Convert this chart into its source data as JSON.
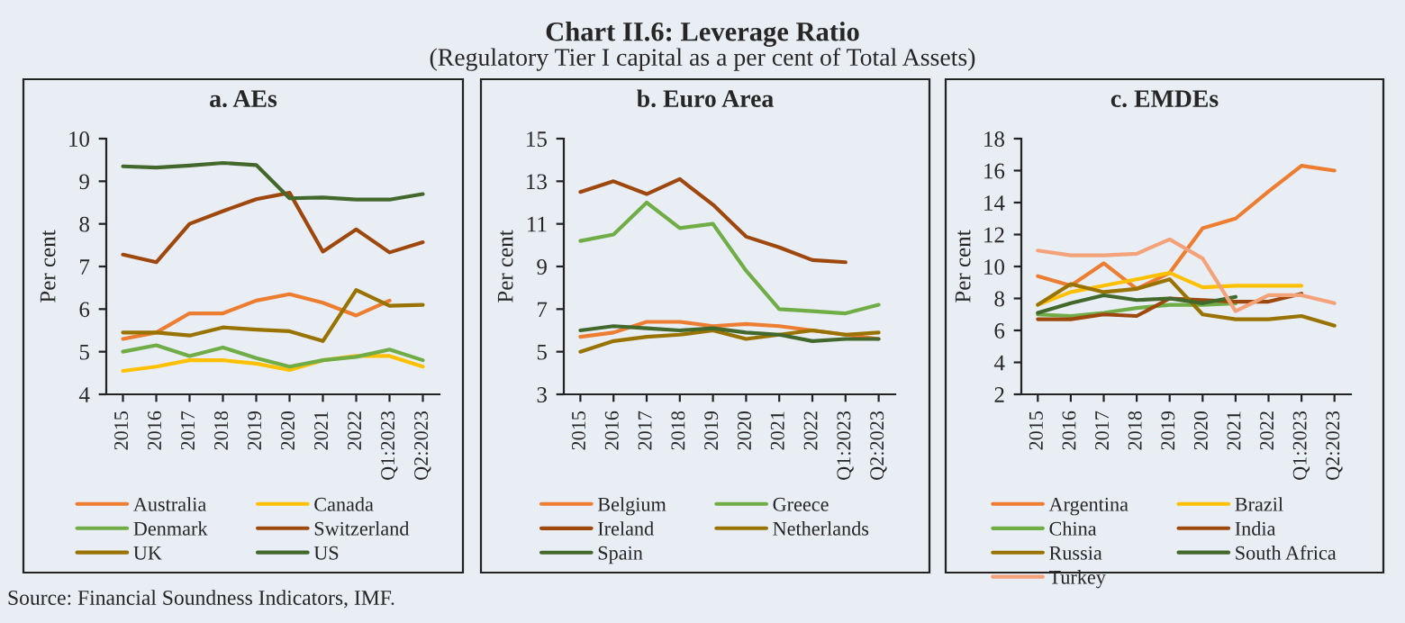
{
  "chart_data": [
    {
      "type": "line",
      "title": "a. AEs",
      "ylabel": "Per cent",
      "annotations": [
        "Chart II.6: Leverage Ratio",
        "(Regulatory Tier I capital as a per cent of Total Assets)",
        "Source: Financial Soundness Indicators, IMF."
      ],
      "categories": [
        "2015",
        "2016",
        "2017",
        "2018",
        "2019",
        "2020",
        "2021",
        "2022",
        "Q1:2023",
        "Q2:2023"
      ],
      "ylim": [
        4,
        10
      ],
      "yticks": [
        4,
        5,
        6,
        7,
        8,
        9,
        10
      ],
      "grid": false,
      "legend": "bottom",
      "marker": "none",
      "line_style": "solid",
      "series": [
        {
          "name": "Australia",
          "color": "#ed7d31",
          "values": [
            5.3,
            5.45,
            5.9,
            5.9,
            6.2,
            6.35,
            6.15,
            5.85,
            6.2,
            null
          ]
        },
        {
          "name": "Canada",
          "color": "#ffc000",
          "values": [
            4.55,
            4.65,
            4.8,
            4.8,
            4.72,
            4.57,
            4.8,
            4.9,
            4.9,
            4.65
          ]
        },
        {
          "name": "Denmark",
          "color": "#70ad47",
          "values": [
            5.0,
            5.15,
            4.9,
            5.1,
            4.85,
            4.65,
            4.8,
            4.88,
            5.05,
            4.8
          ]
        },
        {
          "name": "Switzerland",
          "color": "#9e480e",
          "values": [
            7.28,
            7.1,
            8.0,
            8.3,
            8.58,
            8.73,
            7.35,
            7.87,
            7.33,
            7.57
          ]
        },
        {
          "name": "UK",
          "color": "#997300",
          "values": [
            5.45,
            5.45,
            5.38,
            5.57,
            5.52,
            5.48,
            5.25,
            6.45,
            6.08,
            6.1
          ]
        },
        {
          "name": "US",
          "color": "#43682b",
          "values": [
            9.35,
            9.32,
            9.37,
            9.43,
            9.38,
            8.6,
            8.62,
            8.57,
            8.57,
            8.7
          ]
        }
      ]
    },
    {
      "type": "line",
      "title": "b. Euro Area",
      "ylabel": "Per cent",
      "categories": [
        "2015",
        "2016",
        "2017",
        "2018",
        "2019",
        "2020",
        "2021",
        "2022",
        "Q1:2023",
        "Q2:2023"
      ],
      "ylim": [
        3,
        15
      ],
      "yticks": [
        3,
        5,
        7,
        9,
        11,
        13,
        15
      ],
      "grid": false,
      "legend": "bottom",
      "marker": "none",
      "line_style": "solid",
      "series": [
        {
          "name": "Belgium",
          "color": "#ed7d31",
          "values": [
            5.7,
            5.9,
            6.4,
            6.4,
            6.2,
            6.3,
            6.2,
            6.0,
            5.8,
            5.6
          ]
        },
        {
          "name": "Greece",
          "color": "#70ad47",
          "values": [
            10.2,
            10.5,
            12.0,
            10.8,
            11.0,
            8.8,
            7.0,
            6.9,
            6.8,
            7.2
          ]
        },
        {
          "name": "Ireland",
          "color": "#9e480e",
          "values": [
            12.5,
            13.0,
            12.4,
            13.1,
            11.9,
            10.4,
            9.9,
            9.3,
            9.2,
            null
          ]
        },
        {
          "name": "Netherlands",
          "color": "#997300",
          "values": [
            5.0,
            5.5,
            5.7,
            5.8,
            6.0,
            5.6,
            5.8,
            6.0,
            5.8,
            5.9
          ]
        },
        {
          "name": "Spain",
          "color": "#43682b",
          "values": [
            6.0,
            6.2,
            6.1,
            6.0,
            6.1,
            5.9,
            5.8,
            5.5,
            5.6,
            5.6
          ]
        }
      ]
    },
    {
      "type": "line",
      "title": "c. EMDEs",
      "ylabel": "Per cent",
      "categories": [
        "2015",
        "2016",
        "2017",
        "2018",
        "2019",
        "2020",
        "2021",
        "2022",
        "Q1:2023",
        "Q2:2023"
      ],
      "ylim": [
        2,
        18
      ],
      "yticks": [
        2,
        4,
        6,
        8,
        10,
        12,
        14,
        16,
        18
      ],
      "grid": false,
      "legend": "bottom",
      "marker": "none",
      "line_style": "solid",
      "series": [
        {
          "name": "Argentina",
          "color": "#ed7d31",
          "values": [
            9.4,
            8.8,
            10.2,
            8.6,
            9.6,
            12.4,
            13.0,
            14.7,
            16.3,
            16.0
          ]
        },
        {
          "name": "Brazil",
          "color": "#ffc000",
          "values": [
            7.6,
            8.4,
            8.8,
            9.2,
            9.6,
            8.7,
            8.8,
            8.8,
            8.8,
            null
          ]
        },
        {
          "name": "China",
          "color": "#70ad47",
          "values": [
            7.0,
            6.9,
            7.1,
            7.4,
            7.6,
            7.6,
            7.7,
            null,
            null,
            null
          ]
        },
        {
          "name": "India",
          "color": "#9e480e",
          "values": [
            6.7,
            6.7,
            7.0,
            6.9,
            8.0,
            7.9,
            7.8,
            7.8,
            8.3,
            null
          ]
        },
        {
          "name": "Russia",
          "color": "#997300",
          "values": [
            7.6,
            8.9,
            8.4,
            8.6,
            9.2,
            7.0,
            6.7,
            6.7,
            6.9,
            6.3
          ]
        },
        {
          "name": "South Africa",
          "color": "#43682b",
          "values": [
            7.1,
            7.7,
            8.2,
            7.9,
            8.0,
            7.7,
            8.1,
            null,
            null,
            null
          ]
        },
        {
          "name": "Turkey",
          "color": "#f4a27a",
          "values": [
            11.0,
            10.7,
            10.7,
            10.8,
            11.7,
            10.5,
            7.2,
            8.2,
            8.2,
            7.7
          ]
        }
      ]
    }
  ]
}
